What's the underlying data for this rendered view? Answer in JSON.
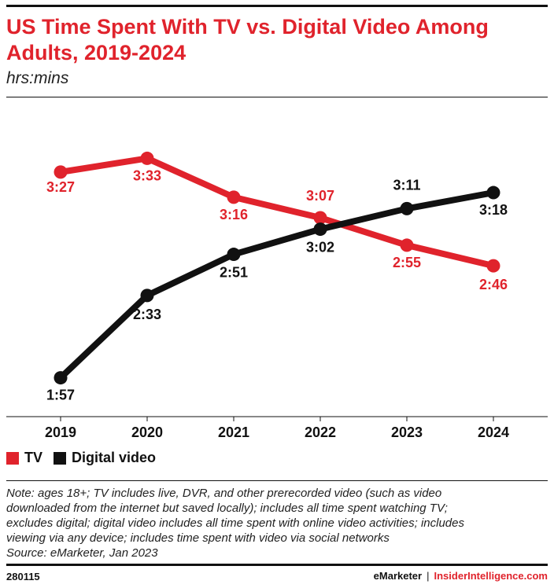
{
  "header": {
    "title": "US Time Spent With TV vs. Digital Video Among Adults, 2019-2024",
    "subtitle": "hrs:mins"
  },
  "chart_data": {
    "type": "line",
    "categories": [
      "2019",
      "2020",
      "2021",
      "2022",
      "2023",
      "2024"
    ],
    "y_unit": "minutes per day",
    "ylim": [
      100,
      230
    ],
    "grid": false,
    "legend_position": "bottom-left",
    "series": [
      {
        "name": "TV",
        "color": "#e0232c",
        "values": [
          207,
          213,
          196,
          187,
          175,
          166
        ],
        "labels": [
          "3:27",
          "3:33",
          "3:16",
          "3:07",
          "2:55",
          "2:46"
        ]
      },
      {
        "name": "Digital video",
        "color": "#111111",
        "values": [
          117,
          153,
          171,
          182,
          191,
          198
        ],
        "labels": [
          "1:57",
          "2:33",
          "2:51",
          "3:02",
          "3:11",
          "3:18"
        ]
      }
    ]
  },
  "note": {
    "lines": [
      "Note: ages 18+; TV includes live, DVR, and other prerecorded video (such as video",
      "downloaded from the internet but saved locally); includes all time spent watching TV;",
      "excludes digital; digital video includes all time spent with online video activities; includes",
      "viewing via any device; includes time spent with video via social networks",
      "Source: eMarketer, Jan 2023"
    ]
  },
  "footer": {
    "chart_id": "280115",
    "brand_emarketer": "eMarketer",
    "separator": "|",
    "brand_insider": "InsiderIntelligence.com"
  }
}
